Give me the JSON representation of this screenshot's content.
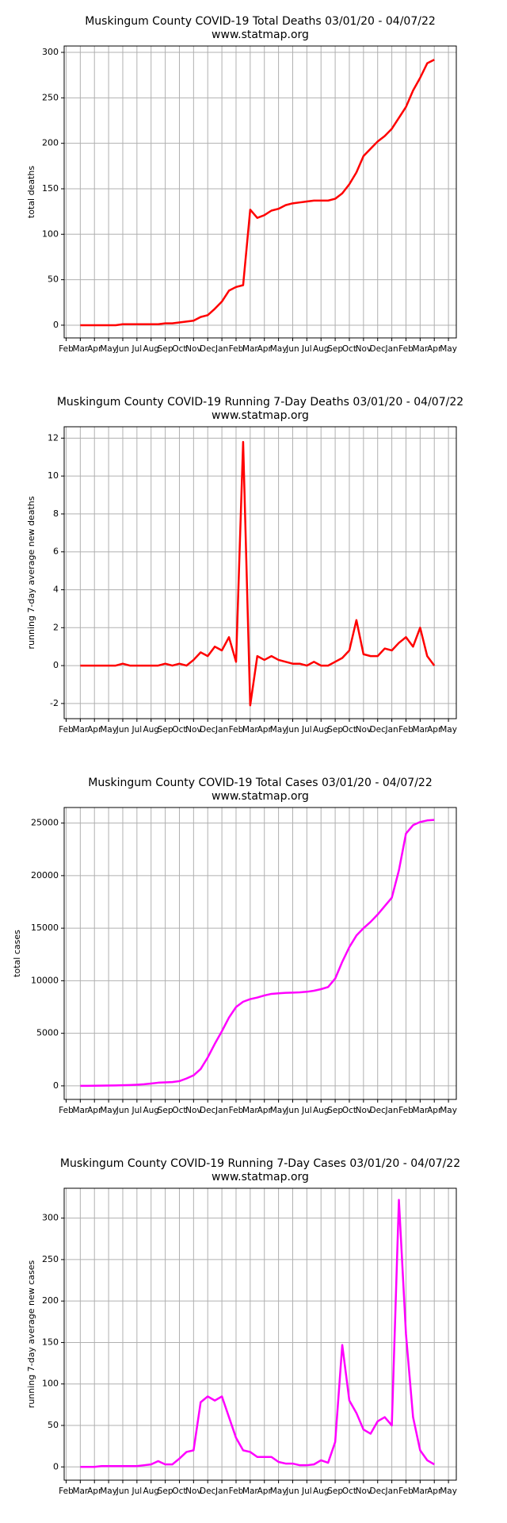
{
  "chart_data": [
    {
      "type": "line",
      "title": "Muskingum County COVID-19 Total Deaths 03/01/20 - 04/07/22",
      "subtitle": "www.statmap.org",
      "y_label": "total deaths",
      "categories": [
        "Feb",
        null,
        "Mar",
        null,
        "Apr",
        null,
        "May",
        null,
        "Jun",
        null,
        "Jul",
        null,
        "Aug",
        null,
        "Sep",
        null,
        "Oct",
        null,
        "Nov",
        null,
        "Dec",
        null,
        "Jan",
        null,
        "Feb",
        null,
        "Mar",
        null,
        "Apr",
        null,
        "May",
        null,
        "Jun",
        null,
        "Jul",
        null,
        "Aug",
        null,
        "Sep",
        null,
        "Oct",
        null,
        "Nov",
        null,
        "Dec",
        null,
        "Jan",
        null,
        "Feb",
        null,
        "Mar",
        null,
        "Apr",
        null,
        "May"
      ],
      "series": [
        {
          "name": "total deaths",
          "color": "#ff0000",
          "values": [
            null,
            null,
            0,
            0,
            0,
            0,
            0,
            0,
            1,
            1,
            1,
            1,
            1,
            1,
            2,
            2,
            3,
            4,
            5,
            9,
            11,
            18,
            26,
            38,
            42,
            44,
            127,
            118,
            121,
            126,
            128,
            132,
            134,
            135,
            136,
            137,
            137,
            137,
            139,
            145,
            155,
            168,
            186,
            194,
            202,
            208,
            216,
            228,
            240,
            258,
            272,
            288,
            292,
            null,
            null
          ]
        }
      ],
      "ylim": [
        -14,
        307
      ],
      "yticks": [
        0,
        50,
        100,
        150,
        200,
        250,
        300
      ],
      "grid": true
    },
    {
      "type": "line",
      "title": "Muskingum County COVID-19 Running 7-Day Deaths 03/01/20 - 04/07/22",
      "subtitle": "www.statmap.org",
      "y_label": "running 7-day average new deaths",
      "categories": [
        "Feb",
        null,
        "Mar",
        null,
        "Apr",
        null,
        "May",
        null,
        "Jun",
        null,
        "Jul",
        null,
        "Aug",
        null,
        "Sep",
        null,
        "Oct",
        null,
        "Nov",
        null,
        "Dec",
        null,
        "Jan",
        null,
        "Feb",
        null,
        "Mar",
        null,
        "Apr",
        null,
        "May",
        null,
        "Jun",
        null,
        "Jul",
        null,
        "Aug",
        null,
        "Sep",
        null,
        "Oct",
        null,
        "Nov",
        null,
        "Dec",
        null,
        "Jan",
        null,
        "Feb",
        null,
        "Mar",
        null,
        "Apr",
        null,
        "May"
      ],
      "series": [
        {
          "name": "running 7-day average new deaths",
          "color": "#ff0000",
          "values": [
            null,
            null,
            0,
            0,
            0,
            0,
            0,
            0,
            0.1,
            0,
            0,
            0,
            0,
            0,
            0.1,
            0,
            0.1,
            0,
            0.3,
            0.7,
            0.5,
            1.0,
            0.8,
            1.5,
            0.2,
            11.8,
            -2.1,
            0.5,
            0.3,
            0.5,
            0.3,
            0.2,
            0.1,
            0.1,
            0,
            0.2,
            0,
            0,
            0.2,
            0.4,
            0.8,
            2.4,
            0.6,
            0.5,
            0.5,
            0.9,
            0.8,
            1.2,
            1.5,
            1.0,
            2.0,
            0.5,
            0,
            null,
            null
          ]
        }
      ],
      "ylim": [
        -2.8,
        12.6
      ],
      "yticks": [
        -2,
        0,
        2,
        4,
        6,
        8,
        10,
        12
      ],
      "grid": true
    },
    {
      "type": "line",
      "title": "Muskingum County COVID-19 Total Cases 03/01/20 - 04/07/22",
      "subtitle": "www.statmap.org",
      "y_label": "total cases",
      "categories": [
        "Feb",
        null,
        "Mar",
        null,
        "Apr",
        null,
        "May",
        null,
        "Jun",
        null,
        "Jul",
        null,
        "Aug",
        null,
        "Sep",
        null,
        "Oct",
        null,
        "Nov",
        null,
        "Dec",
        null,
        "Jan",
        null,
        "Feb",
        null,
        "Mar",
        null,
        "Apr",
        null,
        "May",
        null,
        "Jun",
        null,
        "Jul",
        null,
        "Aug",
        null,
        "Sep",
        null,
        "Oct",
        null,
        "Nov",
        null,
        "Dec",
        null,
        "Jan",
        null,
        "Feb",
        null,
        "Mar",
        null,
        "Apr",
        null,
        "May"
      ],
      "series": [
        {
          "name": "total cases",
          "color": "#ff00ff",
          "values": [
            null,
            null,
            0,
            0,
            10,
            20,
            30,
            40,
            60,
            80,
            110,
            150,
            220,
            300,
            330,
            360,
            450,
            700,
            1000,
            1600,
            2700,
            4000,
            5200,
            6500,
            7500,
            8000,
            8250,
            8400,
            8600,
            8750,
            8800,
            8850,
            8870,
            8900,
            8950,
            9050,
            9200,
            9400,
            10200,
            11800,
            13200,
            14300,
            15000,
            15600,
            16300,
            17100,
            17900,
            20500,
            24000,
            24800,
            25100,
            25250,
            25300,
            null,
            null
          ]
        }
      ],
      "ylim": [
        -1290,
        26480
      ],
      "yticks": [
        0,
        5000,
        10000,
        15000,
        20000,
        25000
      ],
      "grid": true
    },
    {
      "type": "line",
      "title": "Muskingum County COVID-19 Running 7-Day Cases 03/01/20 - 04/07/22",
      "subtitle": "www.statmap.org",
      "y_label": "running 7-day average new cases",
      "categories": [
        "Feb",
        null,
        "Mar",
        null,
        "Apr",
        null,
        "May",
        null,
        "Jun",
        null,
        "Jul",
        null,
        "Aug",
        null,
        "Sep",
        null,
        "Oct",
        null,
        "Nov",
        null,
        "Dec",
        null,
        "Jan",
        null,
        "Feb",
        null,
        "Mar",
        null,
        "Apr",
        null,
        "May",
        null,
        "Jun",
        null,
        "Jul",
        null,
        "Aug",
        null,
        "Sep",
        null,
        "Oct",
        null,
        "Nov",
        null,
        "Dec",
        null,
        "Jan",
        null,
        "Feb",
        null,
        "Mar",
        null,
        "Apr",
        null,
        "May"
      ],
      "series": [
        {
          "name": "running 7-day average new cases",
          "color": "#ff00ff",
          "values": [
            null,
            null,
            0,
            0,
            0,
            1,
            1,
            1,
            1,
            1,
            1,
            2,
            3,
            7,
            3,
            3,
            10,
            18,
            20,
            78,
            85,
            80,
            85,
            60,
            35,
            20,
            18,
            12,
            12,
            12,
            6,
            4,
            4,
            2,
            2,
            3,
            8,
            5,
            30,
            147,
            80,
            65,
            45,
            40,
            55,
            60,
            50,
            322,
            160,
            60,
            20,
            8,
            3,
            null,
            null
          ]
        }
      ],
      "ylim": [
        -16,
        336
      ],
      "yticks": [
        0,
        50,
        100,
        150,
        200,
        250,
        300
      ],
      "grid": true
    }
  ]
}
